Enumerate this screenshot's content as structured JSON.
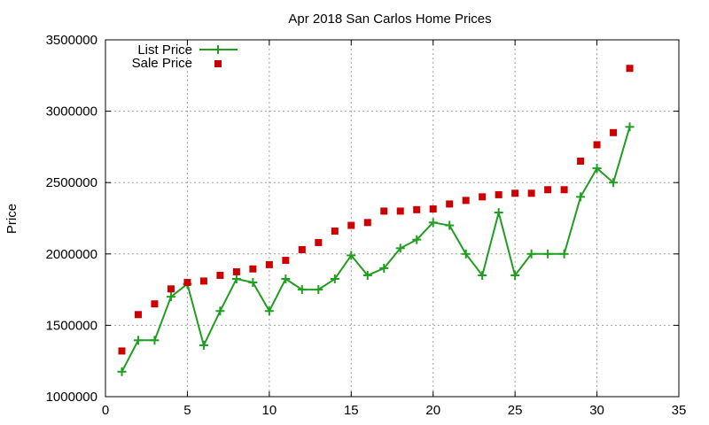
{
  "chart_data": {
    "type": "line",
    "title": "Apr 2018 San Carlos Home Prices",
    "xlabel": "",
    "ylabel": "Price",
    "xlim": [
      0,
      35
    ],
    "ylim": [
      1000000,
      3500000
    ],
    "xticks": [
      0,
      5,
      10,
      15,
      20,
      25,
      30,
      35
    ],
    "yticks": [
      1000000,
      1500000,
      2000000,
      2500000,
      3000000,
      3500000
    ],
    "grid": true,
    "legend_position": "top-left",
    "series": [
      {
        "name": "List Price",
        "style": "line+cross",
        "color": "#1f9e1f",
        "x": [
          1,
          2,
          3,
          4,
          5,
          6,
          7,
          8,
          9,
          10,
          11,
          12,
          13,
          14,
          15,
          16,
          17,
          18,
          19,
          20,
          21,
          22,
          23,
          24,
          25,
          26,
          27,
          28,
          29,
          30,
          31,
          32
        ],
        "y": [
          1175000,
          1395000,
          1395000,
          1700000,
          1790000,
          1360000,
          1600000,
          1825000,
          1800000,
          1600000,
          1825000,
          1750000,
          1750000,
          1825000,
          1990000,
          1850000,
          1900000,
          2040000,
          2100000,
          2220000,
          2200000,
          2000000,
          1850000,
          2290000,
          1850000,
          2000000,
          2000000,
          2000000,
          2400000,
          2600000,
          2500000,
          2890000
        ]
      },
      {
        "name": "Sale Price",
        "style": "square",
        "color": "#cc0000",
        "x": [
          1,
          2,
          3,
          4,
          5,
          6,
          7,
          8,
          9,
          10,
          11,
          12,
          13,
          14,
          15,
          16,
          17,
          18,
          19,
          20,
          21,
          22,
          23,
          24,
          25,
          26,
          27,
          28,
          29,
          30,
          31,
          32
        ],
        "y": [
          1320000,
          1575000,
          1650000,
          1755000,
          1800000,
          1810000,
          1850000,
          1875000,
          1895000,
          1925000,
          1955000,
          2030000,
          2080000,
          2160000,
          2200000,
          2220000,
          2300000,
          2300000,
          2310000,
          2315000,
          2350000,
          2375000,
          2400000,
          2415000,
          2425000,
          2425000,
          2450000,
          2450000,
          2650000,
          2765000,
          2850000,
          3300000
        ]
      }
    ]
  }
}
